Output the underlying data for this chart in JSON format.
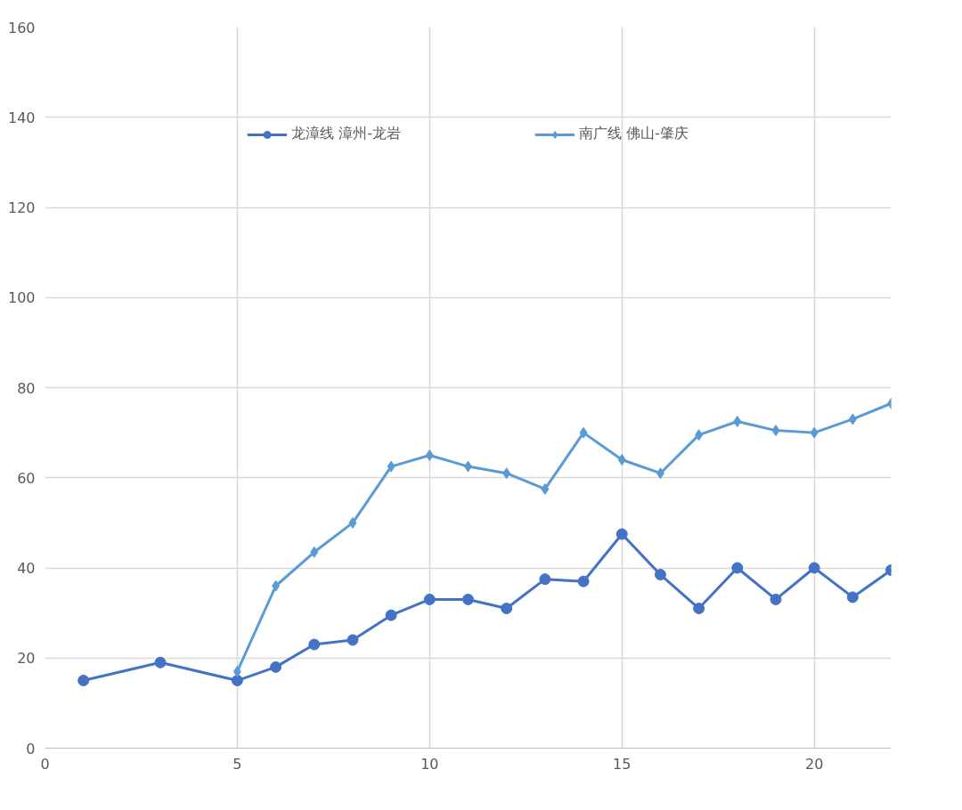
{
  "chart_data": {
    "type": "line",
    "xlim": [
      0,
      22
    ],
    "xticks": [
      0,
      5,
      10,
      15,
      20
    ],
    "ylim": [
      0,
      160
    ],
    "yticks": [
      0,
      20,
      40,
      60,
      80,
      100,
      120,
      140,
      160
    ],
    "grid": true,
    "legend": "top",
    "line_style": "solid",
    "series": [
      {
        "name": "龙漳线 漳州-龙岩",
        "color": "#4472c4",
        "marker": "circle",
        "x": [
          1,
          3,
          5,
          6,
          7,
          8,
          9,
          10,
          11,
          12,
          13,
          14,
          15,
          16,
          17,
          18,
          19,
          20,
          21,
          22
        ],
        "values": [
          15,
          19,
          15,
          18,
          23,
          24,
          29.5,
          33,
          33,
          31,
          37.5,
          37,
          47.5,
          38.5,
          31,
          40,
          33,
          40,
          33.5,
          39.5
        ]
      },
      {
        "name": "南广线 佛山-肇庆",
        "color": "#5b9bd5",
        "marker": "diamond",
        "x": [
          5,
          6,
          7,
          8,
          9,
          10,
          11,
          12,
          13,
          14,
          15,
          16,
          17,
          18,
          19,
          20,
          21,
          22
        ],
        "values": [
          17,
          36,
          43.5,
          50,
          62.5,
          65,
          62.5,
          61,
          57.5,
          70,
          64,
          61,
          69.5,
          72.5,
          70.5,
          70,
          73,
          76.5
        ]
      }
    ]
  }
}
